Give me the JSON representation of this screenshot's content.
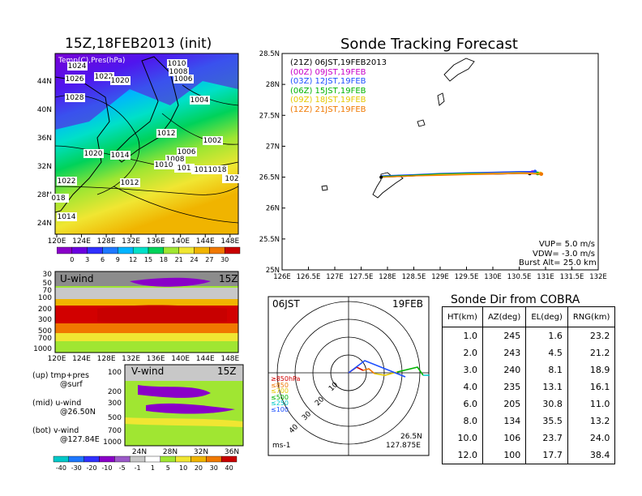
{
  "map_title": "15Z,18FEB2013 (init)",
  "map_label": "Temp(C),Pres(hPa)",
  "map_lon_ticks": [
    "120E",
    "124E",
    "128E",
    "132E",
    "136E",
    "140E",
    "144E",
    "148E"
  ],
  "map_lat_ticks": [
    "44N",
    "40N",
    "36N",
    "32N",
    "28N",
    "24N"
  ],
  "pressure_labels": [
    "1024",
    "1026",
    "1022",
    "1020",
    "1010",
    "1008",
    "1006",
    "1028",
    "1004",
    "1012",
    "1002",
    "1020",
    "1014",
    "1006",
    "1008",
    "1010",
    "1012",
    "101",
    "101",
    "1018",
    "102",
    "1022",
    "018",
    "1014"
  ],
  "temp_colorbar": [
    "0",
    "3",
    "6",
    "9",
    "12",
    "15",
    "18",
    "21",
    "24",
    "27",
    "30"
  ],
  "temp_colors": [
    "#8a00c8",
    "#6a00e0",
    "#3030ff",
    "#1e78ff",
    "#00b4ff",
    "#00e0c8",
    "#00d25a",
    "#a0e632",
    "#f0e632",
    "#f0b400",
    "#f07800",
    "#c80000"
  ],
  "uwind_title": "U-wind",
  "uwind_time": "15Z",
  "uwind_levels": [
    "30",
    "50",
    "70",
    "100",
    "200",
    "300",
    "500",
    "700",
    "1000"
  ],
  "vwind_title": "V-wind",
  "vwind_time": "15Z",
  "vwind_levels": [
    "100",
    "200",
    "300",
    "500",
    "700",
    "1000"
  ],
  "vwind_lat_ticks": [
    "24N",
    "28N",
    "32N",
    "36N"
  ],
  "legend_notes": [
    {
      "main": "(up) tmp+pres",
      "sub": "@surf"
    },
    {
      "main": "(mid) u-wind",
      "sub": "@26.50N"
    },
    {
      "main": "(bot) v-wind",
      "sub": "@127.84E"
    }
  ],
  "wind_colorbar": [
    "-40",
    "-30",
    "-20",
    "-10",
    "-5",
    "-1",
    "1",
    "5",
    "10",
    "20",
    "30",
    "40"
  ],
  "wind_colors": [
    "#00c8c8",
    "#1e78ff",
    "#3030ff",
    "#8a00c8",
    "#9b59c8",
    "#c8c8c8",
    "#ffffff",
    "#a0e632",
    "#f0e632",
    "#f0b400",
    "#f07800",
    "#c80000"
  ],
  "track_title": "Sonde Tracking Forecast",
  "track_lat_ticks": [
    "28.5N",
    "28N",
    "27.5N",
    "27N",
    "26.5N",
    "26N",
    "25.5N",
    "25N"
  ],
  "track_lon_ticks": [
    "126E",
    "126.5E",
    "127E",
    "127.5E",
    "128E",
    "128.5E",
    "129E",
    "129.5E",
    "130E",
    "130.5E",
    "131E",
    "131.5E",
    "132E"
  ],
  "track_runs": [
    {
      "code": "(21Z)",
      "time": "06JST,19FEB2013",
      "color": "#000000"
    },
    {
      "code": "(00Z)",
      "time": "09JST,19FEB",
      "color": "#c800c8"
    },
    {
      "code": "(03Z)",
      "time": "12JST,19FEB",
      "color": "#1e50ff"
    },
    {
      "code": "(06Z)",
      "time": "15JST,19FEB",
      "color": "#00b400"
    },
    {
      "code": "(09Z)",
      "time": "18JST,19FEB",
      "color": "#e6c800"
    },
    {
      "code": "(12Z)",
      "time": "21JST,19FEB",
      "color": "#f07800"
    }
  ],
  "params": [
    {
      "label": "VUP=",
      "value": "5.0",
      "unit": "m/s"
    },
    {
      "label": "VDW=",
      "value": "-3.0",
      "unit": "m/s"
    },
    {
      "label": "Burst Alt=",
      "value": "25.0",
      "unit": "km"
    }
  ],
  "polar_time": "06JST",
  "polar_date": "19FEB",
  "polar_ring_labels": [
    "10",
    "20",
    "30",
    "40"
  ],
  "polar_speed_legend": [
    {
      "label": "≥850hPa",
      "color": "#d20000"
    },
    {
      "label": "≤850",
      "color": "#f07800"
    },
    {
      "label": "≤700",
      "color": "#e6c800"
    },
    {
      "label": "≤500",
      "color": "#00b400"
    },
    {
      "label": "≤250",
      "color": "#00c8c8"
    },
    {
      "label": "≤100",
      "color": "#1e50ff"
    }
  ],
  "polar_unit": "ms-1",
  "polar_loc_lat": "26.5N",
  "polar_loc_lon": "127.875E",
  "dir_title": "Sonde Dir from COBRA",
  "dir_headers": [
    "HT(km)",
    "AZ(deg)",
    "EL(deg)",
    "RNG(km)"
  ],
  "dir_rows": [
    [
      "1.0",
      "245",
      "1.6",
      "23.2"
    ],
    [
      "2.0",
      "243",
      "4.5",
      "21.2"
    ],
    [
      "3.0",
      "240",
      "8.1",
      "18.9"
    ],
    [
      "4.0",
      "235",
      "13.1",
      "16.1"
    ],
    [
      "6.0",
      "205",
      "30.8",
      "11.0"
    ],
    [
      "8.0",
      "134",
      "35.5",
      "13.2"
    ],
    [
      "10.0",
      "106",
      "23.7",
      "24.0"
    ],
    [
      "12.0",
      "100",
      "17.7",
      "38.4"
    ]
  ],
  "chart_data": [
    {
      "type": "line",
      "title": "Sonde Tracking Forecast",
      "xlabel": "",
      "ylabel": "",
      "xlim": [
        126,
        132
      ],
      "ylim": [
        25,
        28.5
      ],
      "grid": false,
      "series": [
        {
          "name": "(21Z) 06JST,19FEB2013",
          "x": [
            127.88,
            128.5,
            129.0,
            129.5,
            130.0,
            130.5,
            130.7
          ],
          "y": [
            26.5,
            26.52,
            26.54,
            26.55,
            26.55,
            26.56,
            26.56
          ]
        },
        {
          "name": "(00Z) 09JST,19FEB",
          "x": [
            127.88,
            128.5,
            129.0,
            129.5,
            130.0,
            130.5,
            130.75
          ],
          "y": [
            26.51,
            26.53,
            26.55,
            26.56,
            26.57,
            26.58,
            26.58
          ]
        },
        {
          "name": "(03Z) 12JST,19FEB",
          "x": [
            127.88,
            128.5,
            129.0,
            129.5,
            130.0,
            130.5,
            130.8
          ],
          "y": [
            26.52,
            26.54,
            26.56,
            26.57,
            26.58,
            26.59,
            26.59
          ]
        },
        {
          "name": "(06Z) 15JST,19FEB",
          "x": [
            127.88,
            128.5,
            129.0,
            129.5,
            130.0,
            130.5,
            130.85
          ],
          "y": [
            26.51,
            26.53,
            26.55,
            26.56,
            26.56,
            26.57,
            26.56
          ]
        },
        {
          "name": "(09Z) 18JST,19FEB",
          "x": [
            127.88,
            128.5,
            129.0,
            129.5,
            130.0,
            130.5,
            130.9
          ],
          "y": [
            26.5,
            26.52,
            26.54,
            26.55,
            26.56,
            26.57,
            26.56
          ]
        },
        {
          "name": "(12Z) 21JST,19FEB",
          "x": [
            127.88,
            128.5,
            129.0,
            129.5,
            130.0,
            130.5,
            130.92
          ],
          "y": [
            26.5,
            26.52,
            26.53,
            26.54,
            26.55,
            26.56,
            26.55
          ]
        }
      ]
    },
    {
      "type": "table",
      "title": "Sonde Dir from COBRA",
      "columns": [
        "HT(km)",
        "AZ(deg)",
        "EL(deg)",
        "RNG(km)"
      ],
      "rows": [
        [
          1.0,
          245,
          1.6,
          23.2
        ],
        [
          2.0,
          243,
          4.5,
          21.2
        ],
        [
          3.0,
          240,
          8.1,
          18.9
        ],
        [
          4.0,
          235,
          13.1,
          16.1
        ],
        [
          6.0,
          205,
          30.8,
          11.0
        ],
        [
          8.0,
          134,
          35.5,
          13.2
        ],
        [
          10.0,
          106,
          23.7,
          24.0
        ],
        [
          12.0,
          100,
          17.7,
          38.4
        ]
      ]
    }
  ]
}
